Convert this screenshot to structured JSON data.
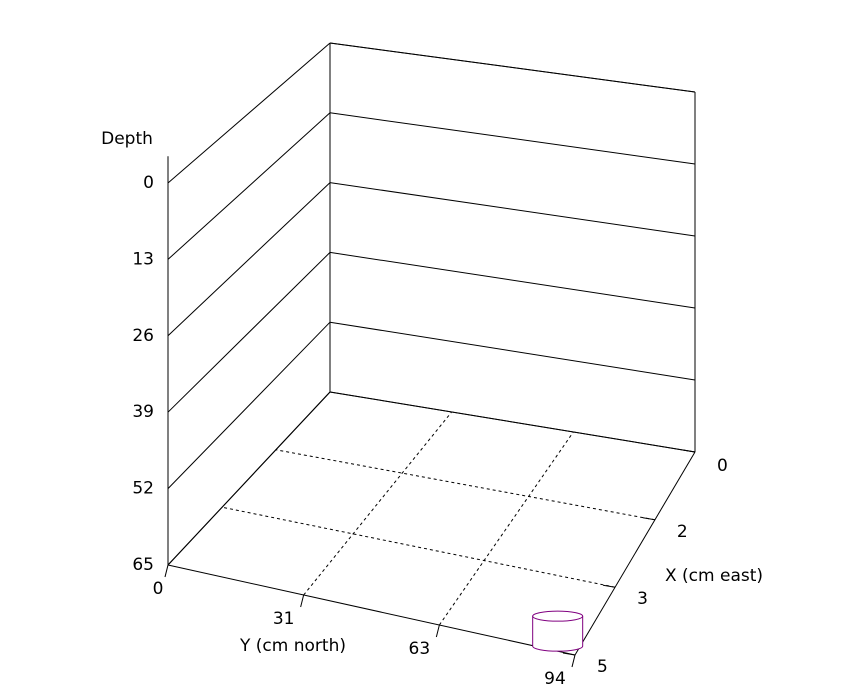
{
  "chart_data": {
    "type": "scatter3d",
    "zlabel": "Depth",
    "ylabel": "Y (cm north)",
    "xlabel": "X (cm east)",
    "xlim": [
      0,
      5
    ],
    "xticks": [
      0,
      {
        "value": 1.67,
        "label": "2"
      },
      {
        "value": 3.33,
        "label": "3"
      },
      5
    ],
    "ylim": [
      0,
      94
    ],
    "yticks": [
      0,
      {
        "value": 31.33,
        "label": "31"
      },
      {
        "value": 62.67,
        "label": "63"
      },
      94
    ],
    "zlim": [
      0,
      65
    ],
    "zticks": [
      0,
      13,
      26,
      39,
      52,
      65
    ],
    "series": [
      {
        "color": "#800080",
        "x": [
          5
        ],
        "y": [
          90
        ],
        "z": [
          65
        ]
      }
    ]
  }
}
